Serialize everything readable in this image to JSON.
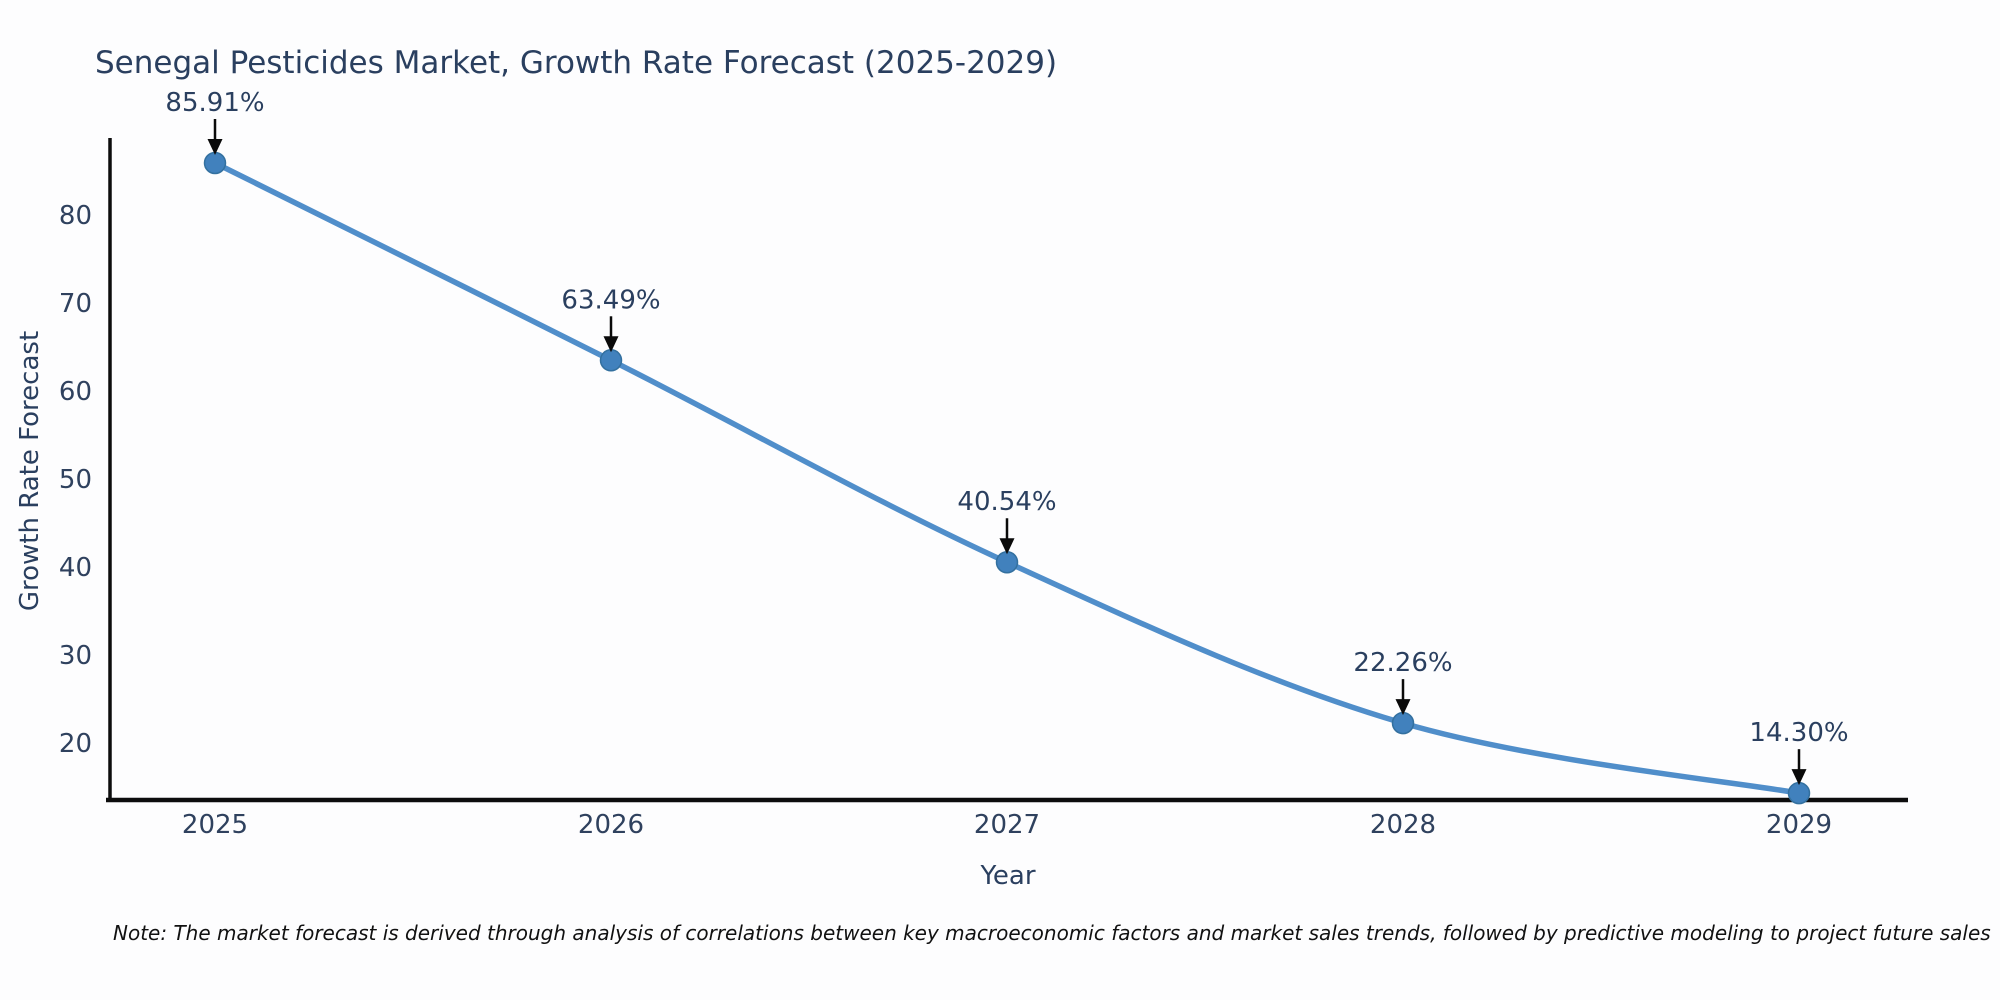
{
  "chart_data": {
    "type": "line",
    "title": "Senegal Pesticides Market, Growth Rate Forecast (2025-2029)",
    "xlabel": "Year",
    "ylabel": "Growth Rate Forecast",
    "categories": [
      "2025",
      "2026",
      "2027",
      "2028",
      "2029"
    ],
    "values": [
      85.91,
      63.49,
      40.54,
      22.26,
      14.3
    ],
    "point_labels": [
      "85.91%",
      "63.49%",
      "40.54%",
      "22.26%",
      "14.30%"
    ],
    "yticks": [
      20,
      30,
      40,
      50,
      60,
      70,
      80
    ],
    "ylim": [
      13.5,
      88.5
    ],
    "grid": false,
    "legend": "none",
    "line_shape": "spline",
    "markers": true,
    "annotations_arrows": true,
    "note": "Note: The market forecast is derived through analysis of correlations between key macroeconomic factors and market sales trends, followed by predictive modeling to project future sales"
  },
  "style": {
    "line_color": "#4788c7",
    "marker_color": "#4181bd",
    "marker_edge_color": "#33709f",
    "axis_color": "#0d0d0d",
    "arrow_color": "#0a0a0a",
    "text_color": "#2a3f5f",
    "background": "#fdfdfe"
  }
}
